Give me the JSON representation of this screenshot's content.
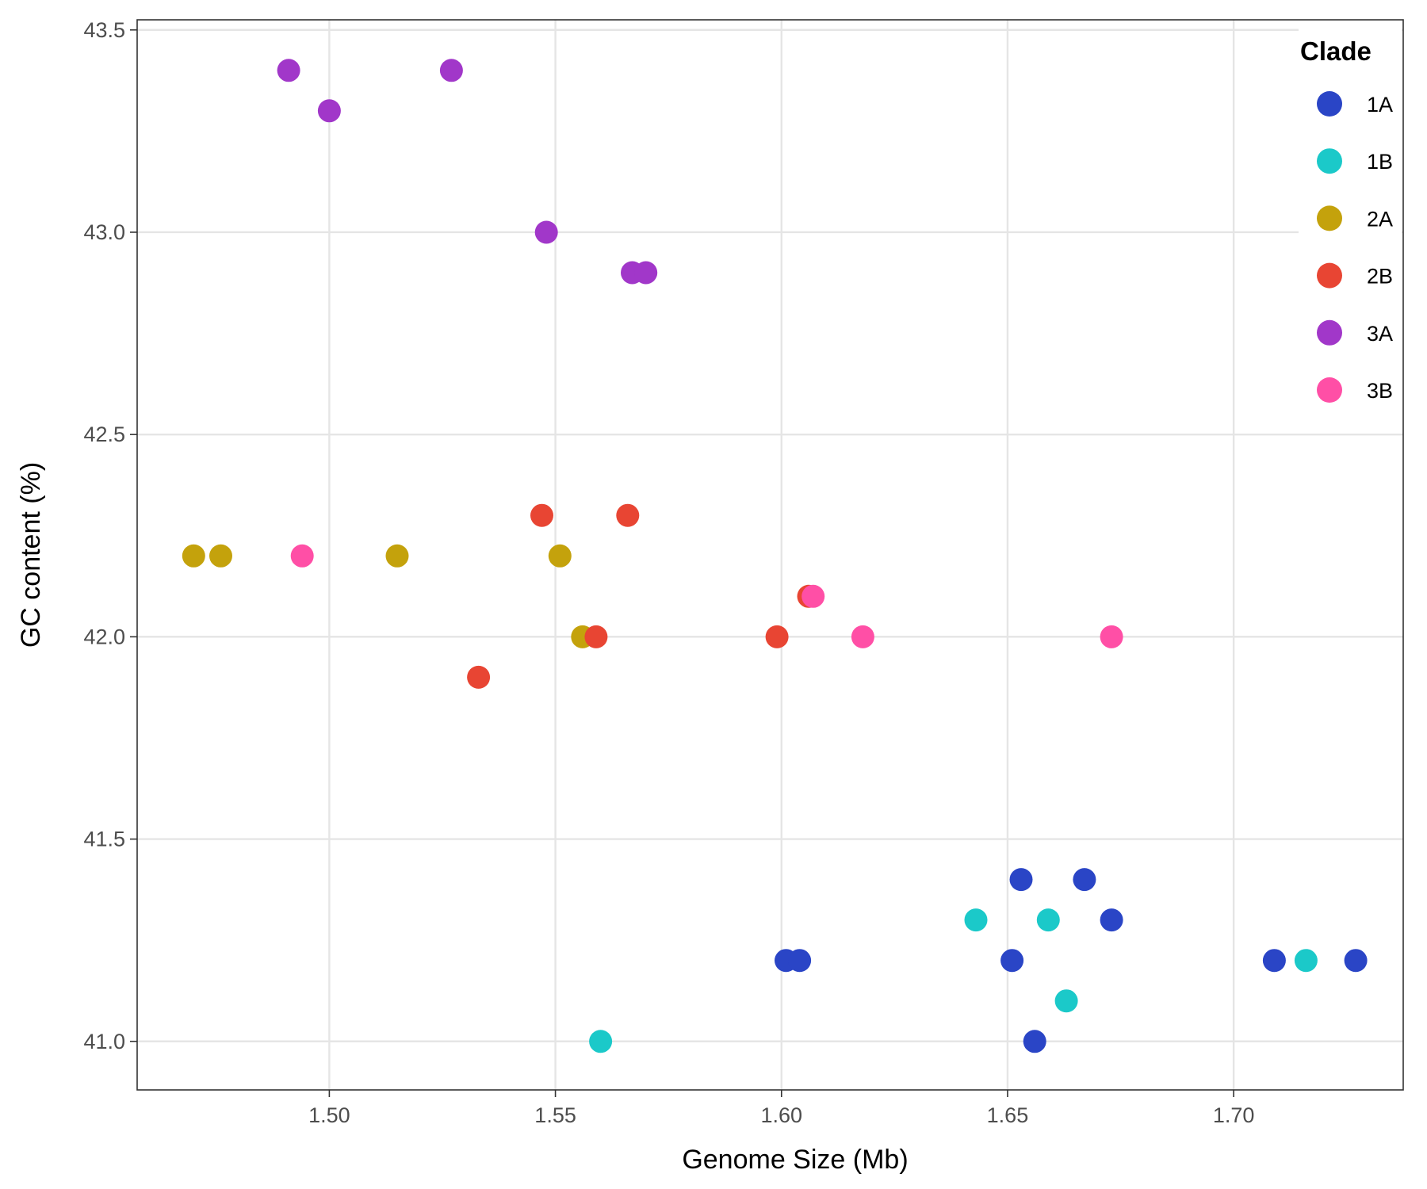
{
  "chart_data": {
    "type": "scatter",
    "title": "",
    "xlabel": "Genome Size (Mb)",
    "ylabel": "GC content (%)",
    "xlim": [
      1.4575,
      1.7375
    ],
    "ylim": [
      40.88,
      43.525
    ],
    "x_ticks": [
      1.5,
      1.55,
      1.6,
      1.65,
      1.7
    ],
    "x_tick_labels": [
      "1.50",
      "1.55",
      "1.60",
      "1.65",
      "1.70"
    ],
    "y_ticks": [
      41.0,
      41.5,
      42.0,
      42.5,
      43.0,
      43.5
    ],
    "y_tick_labels": [
      "41.0",
      "41.5",
      "42.0",
      "42.5",
      "43.0",
      "43.5"
    ],
    "grid": true,
    "legend": {
      "title": "Clade",
      "position": "top-right"
    },
    "series": [
      {
        "name": "1A",
        "color": "#2A45C6",
        "points": [
          [
            1.601,
            41.2
          ],
          [
            1.604,
            41.2
          ],
          [
            1.651,
            41.2
          ],
          [
            1.653,
            41.4
          ],
          [
            1.656,
            41.0
          ],
          [
            1.667,
            41.4
          ],
          [
            1.673,
            41.3
          ],
          [
            1.709,
            41.2
          ],
          [
            1.727,
            41.2
          ]
        ]
      },
      {
        "name": "1B",
        "color": "#1BC9C9",
        "points": [
          [
            1.56,
            41.0
          ],
          [
            1.643,
            41.3
          ],
          [
            1.659,
            41.3
          ],
          [
            1.663,
            41.1
          ],
          [
            1.716,
            41.2
          ]
        ]
      },
      {
        "name": "2A",
        "color": "#C4A20C",
        "points": [
          [
            1.47,
            42.2
          ],
          [
            1.476,
            42.2
          ],
          [
            1.515,
            42.2
          ],
          [
            1.551,
            42.2
          ],
          [
            1.556,
            42.0
          ]
        ]
      },
      {
        "name": "2B",
        "color": "#E84533",
        "points": [
          [
            1.533,
            41.9
          ],
          [
            1.547,
            42.3
          ],
          [
            1.559,
            42.0
          ],
          [
            1.566,
            42.3
          ],
          [
            1.599,
            42.0
          ],
          [
            1.606,
            42.1
          ]
        ]
      },
      {
        "name": "3A",
        "color": "#A137C9",
        "points": [
          [
            1.491,
            43.4
          ],
          [
            1.5,
            43.3
          ],
          [
            1.527,
            43.4
          ],
          [
            1.548,
            43.0
          ],
          [
            1.567,
            42.9
          ],
          [
            1.57,
            42.9
          ]
        ]
      },
      {
        "name": "3B",
        "color": "#FF4FA6",
        "points": [
          [
            1.494,
            42.2
          ],
          [
            1.607,
            42.1
          ],
          [
            1.618,
            42.0
          ],
          [
            1.673,
            42.0
          ]
        ]
      }
    ]
  }
}
